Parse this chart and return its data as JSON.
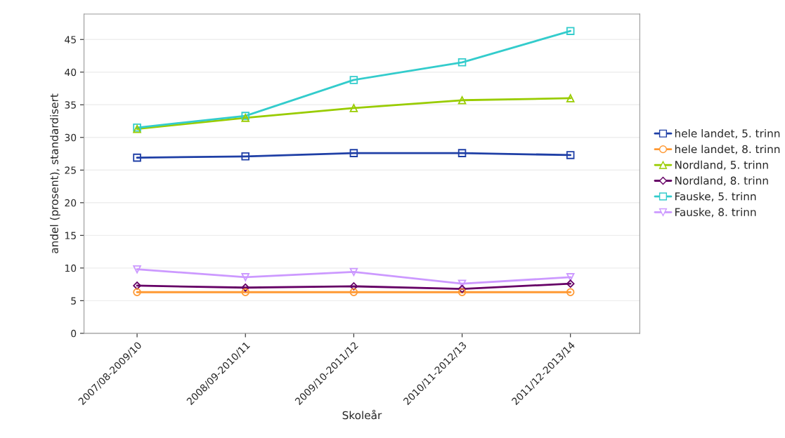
{
  "chart_data": {
    "type": "line",
    "xlabel": "Skoleår",
    "ylabel": "andel (prosent), standardisert",
    "categories": [
      "2007/08-2009/10",
      "2008/09-2010/11",
      "2009/10-2011/12",
      "2010/11-2012/13",
      "2011/12-2013/14"
    ],
    "series": [
      {
        "name": "hele landet, 5. trinn",
        "color": "#1f3fa6",
        "marker": "square",
        "values": [
          26.9,
          27.1,
          27.6,
          27.6,
          27.3
        ]
      },
      {
        "name": "hele landet, 8. trinn",
        "color": "#ff9933",
        "marker": "circle",
        "values": [
          6.3,
          6.3,
          6.3,
          6.3,
          6.3
        ]
      },
      {
        "name": "Nordland, 5. trinn",
        "color": "#99cc00",
        "marker": "triangle",
        "values": [
          31.3,
          33.0,
          34.5,
          35.7,
          36.0
        ]
      },
      {
        "name": "Nordland, 8. trinn",
        "color": "#660066",
        "marker": "diamond",
        "values": [
          7.3,
          7.0,
          7.2,
          6.8,
          7.6
        ]
      },
      {
        "name": "Fauske, 5. trinn",
        "color": "#33cccc",
        "marker": "square",
        "values": [
          31.5,
          33.3,
          38.8,
          41.5,
          46.3
        ]
      },
      {
        "name": "Fauske, 8. trinn",
        "color": "#cc99ff",
        "marker": "triangle_down",
        "values": [
          9.8,
          8.6,
          9.4,
          7.6,
          8.6
        ]
      }
    ],
    "ylim": [
      0,
      48.9
    ],
    "yticks": [
      0,
      5,
      10,
      15,
      20,
      25,
      30,
      35,
      40,
      45
    ],
    "grid": "y",
    "legend": "right",
    "line_style": "solid"
  }
}
